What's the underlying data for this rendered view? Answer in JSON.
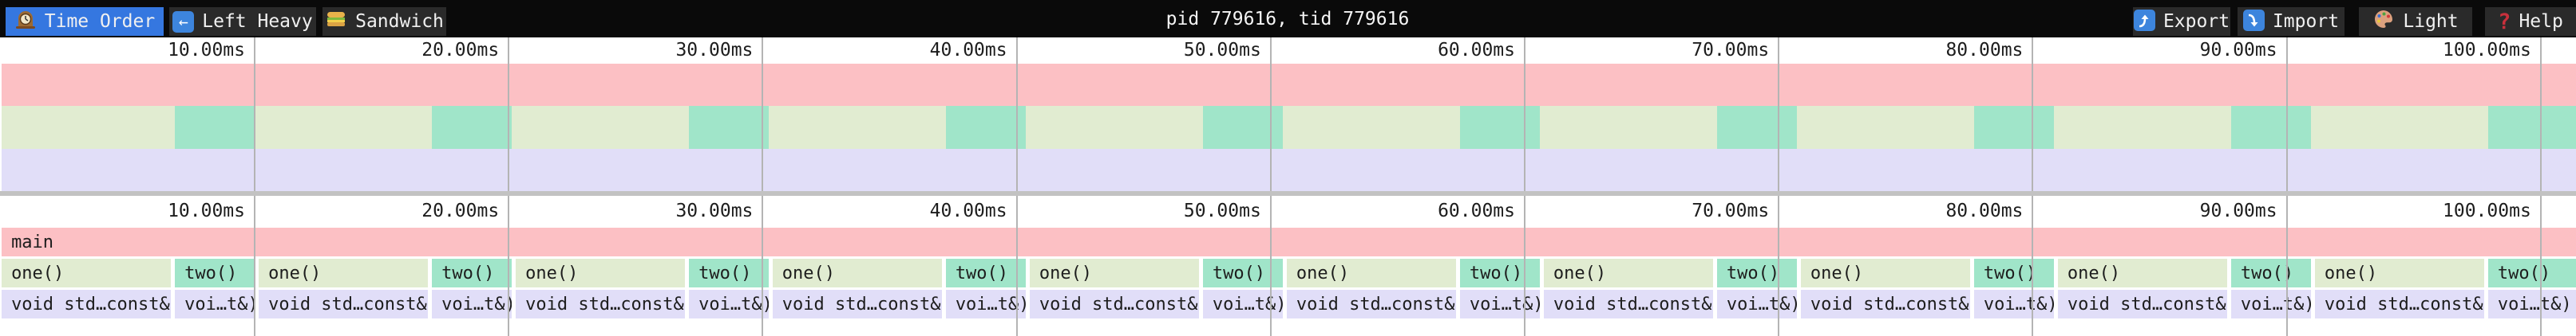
{
  "topbar": {
    "tabs": [
      {
        "label": "Time Order",
        "icon": "clock-icon",
        "active": true
      },
      {
        "label": "Left Heavy",
        "icon": "left-arrow-icon",
        "active": false
      },
      {
        "label": "Sandwich",
        "icon": "sandwich-icon",
        "active": false
      }
    ],
    "title": "pid 779616, tid 779616",
    "actions": [
      {
        "label": "Export",
        "icon": "export-arrow-icon"
      },
      {
        "label": "Import",
        "icon": "import-arrow-icon"
      },
      {
        "label": "Light",
        "icon": "palette-icon"
      },
      {
        "label": "Help",
        "icon": "help-icon"
      }
    ]
  },
  "colors": {
    "accent_blue": "#3577e0",
    "icon_blue": "#3d85dd",
    "pink": "#fcc0c4",
    "green": "#e1ecd1",
    "teal": "#a0e5c9",
    "lavender": "#e1def8",
    "gridline": "#b4b4b4",
    "divider": "#c2c2c2",
    "topbar_bg": "#0a0a0a",
    "button_bg": "#2a2a2a"
  },
  "chart_data": {
    "type": "flamegraph",
    "unit": "ms",
    "x_ticks": [
      {
        "ms": 10,
        "label": "10.00ms"
      },
      {
        "ms": 20,
        "label": "20.00ms"
      },
      {
        "ms": 30,
        "label": "30.00ms"
      },
      {
        "ms": 40,
        "label": "40.00ms"
      },
      {
        "ms": 50,
        "label": "50.00ms"
      },
      {
        "ms": 60,
        "label": "60.00ms"
      },
      {
        "ms": 70,
        "label": "70.00ms"
      },
      {
        "ms": 80,
        "label": "80.00ms"
      },
      {
        "ms": 90,
        "label": "90.00ms"
      },
      {
        "ms": 100,
        "label": "100.00ms"
      }
    ],
    "rows": [
      {
        "name": "main",
        "spans": [
          {
            "label": "main",
            "start": 0.04,
            "end": 101.39,
            "color": "pink"
          }
        ]
      },
      {
        "name": "depth-1",
        "spans": [
          {
            "label": "one()",
            "start": 0.04,
            "end": 6.7,
            "color": "green"
          },
          {
            "label": "two()",
            "start": 6.86,
            "end": 10.0,
            "color": "teal"
          },
          {
            "label": "one()",
            "start": 10.16,
            "end": 16.82,
            "color": "green"
          },
          {
            "label": "two()",
            "start": 16.98,
            "end": 20.12,
            "color": "teal"
          },
          {
            "label": "one()",
            "start": 20.28,
            "end": 26.94,
            "color": "green"
          },
          {
            "label": "two()",
            "start": 27.1,
            "end": 30.24,
            "color": "teal"
          },
          {
            "label": "one()",
            "start": 30.39,
            "end": 37.05,
            "color": "green"
          },
          {
            "label": "two()",
            "start": 37.21,
            "end": 40.35,
            "color": "teal"
          },
          {
            "label": "one()",
            "start": 40.51,
            "end": 47.17,
            "color": "green"
          },
          {
            "label": "two()",
            "start": 47.33,
            "end": 50.47,
            "color": "teal"
          },
          {
            "label": "one()",
            "start": 50.63,
            "end": 57.29,
            "color": "green"
          },
          {
            "label": "two()",
            "start": 57.45,
            "end": 60.59,
            "color": "teal"
          },
          {
            "label": "one()",
            "start": 60.75,
            "end": 67.41,
            "color": "green"
          },
          {
            "label": "two()",
            "start": 67.57,
            "end": 70.71,
            "color": "teal"
          },
          {
            "label": "one()",
            "start": 70.87,
            "end": 77.53,
            "color": "green"
          },
          {
            "label": "two()",
            "start": 77.69,
            "end": 80.83,
            "color": "teal"
          },
          {
            "label": "one()",
            "start": 80.99,
            "end": 87.65,
            "color": "green"
          },
          {
            "label": "two()",
            "start": 87.81,
            "end": 90.95,
            "color": "teal"
          },
          {
            "label": "one()",
            "start": 91.11,
            "end": 97.77,
            "color": "green"
          },
          {
            "label": "two()",
            "start": 97.93,
            "end": 101.39,
            "color": "teal"
          }
        ]
      },
      {
        "name": "depth-2",
        "spans": [
          {
            "label": "void std…const&)",
            "start": 0.04,
            "end": 6.7,
            "color": "lavender"
          },
          {
            "label": "voi…t&)",
            "start": 6.86,
            "end": 10.0,
            "color": "lavender"
          },
          {
            "label": "void std…const&)",
            "start": 10.16,
            "end": 16.82,
            "color": "lavender"
          },
          {
            "label": "voi…t&)",
            "start": 16.98,
            "end": 20.12,
            "color": "lavender"
          },
          {
            "label": "void std…const&)",
            "start": 20.28,
            "end": 26.94,
            "color": "lavender"
          },
          {
            "label": "voi…t&)",
            "start": 27.1,
            "end": 30.24,
            "color": "lavender"
          },
          {
            "label": "void std…const&)",
            "start": 30.39,
            "end": 37.05,
            "color": "lavender"
          },
          {
            "label": "voi…t&)",
            "start": 37.21,
            "end": 40.35,
            "color": "lavender"
          },
          {
            "label": "void std…const&)",
            "start": 40.51,
            "end": 47.17,
            "color": "lavender"
          },
          {
            "label": "voi…t&)",
            "start": 47.33,
            "end": 50.47,
            "color": "lavender"
          },
          {
            "label": "void std…const&)",
            "start": 50.63,
            "end": 57.29,
            "color": "lavender"
          },
          {
            "label": "voi…t&)",
            "start": 57.45,
            "end": 60.59,
            "color": "lavender"
          },
          {
            "label": "void std…const&)",
            "start": 60.75,
            "end": 67.41,
            "color": "lavender"
          },
          {
            "label": "voi…t&)",
            "start": 67.57,
            "end": 70.71,
            "color": "lavender"
          },
          {
            "label": "void std…const&)",
            "start": 70.87,
            "end": 77.53,
            "color": "lavender"
          },
          {
            "label": "voi…t&)",
            "start": 77.69,
            "end": 80.83,
            "color": "lavender"
          },
          {
            "label": "void std…const&)",
            "start": 80.99,
            "end": 87.65,
            "color": "lavender"
          },
          {
            "label": "voi…t&)",
            "start": 87.81,
            "end": 90.95,
            "color": "lavender"
          },
          {
            "label": "void std…const&)",
            "start": 91.11,
            "end": 97.77,
            "color": "lavender"
          },
          {
            "label": "voi…t&)",
            "start": 97.93,
            "end": 101.39,
            "color": "lavender"
          }
        ]
      }
    ]
  },
  "minimap": {
    "bands": [
      {
        "color": "pink",
        "source_row": 0
      },
      {
        "color": "green",
        "source_row": 1,
        "overlay_label": "two()",
        "overlay_color": "teal"
      },
      {
        "color": "lavender",
        "source_row": 2
      }
    ]
  }
}
